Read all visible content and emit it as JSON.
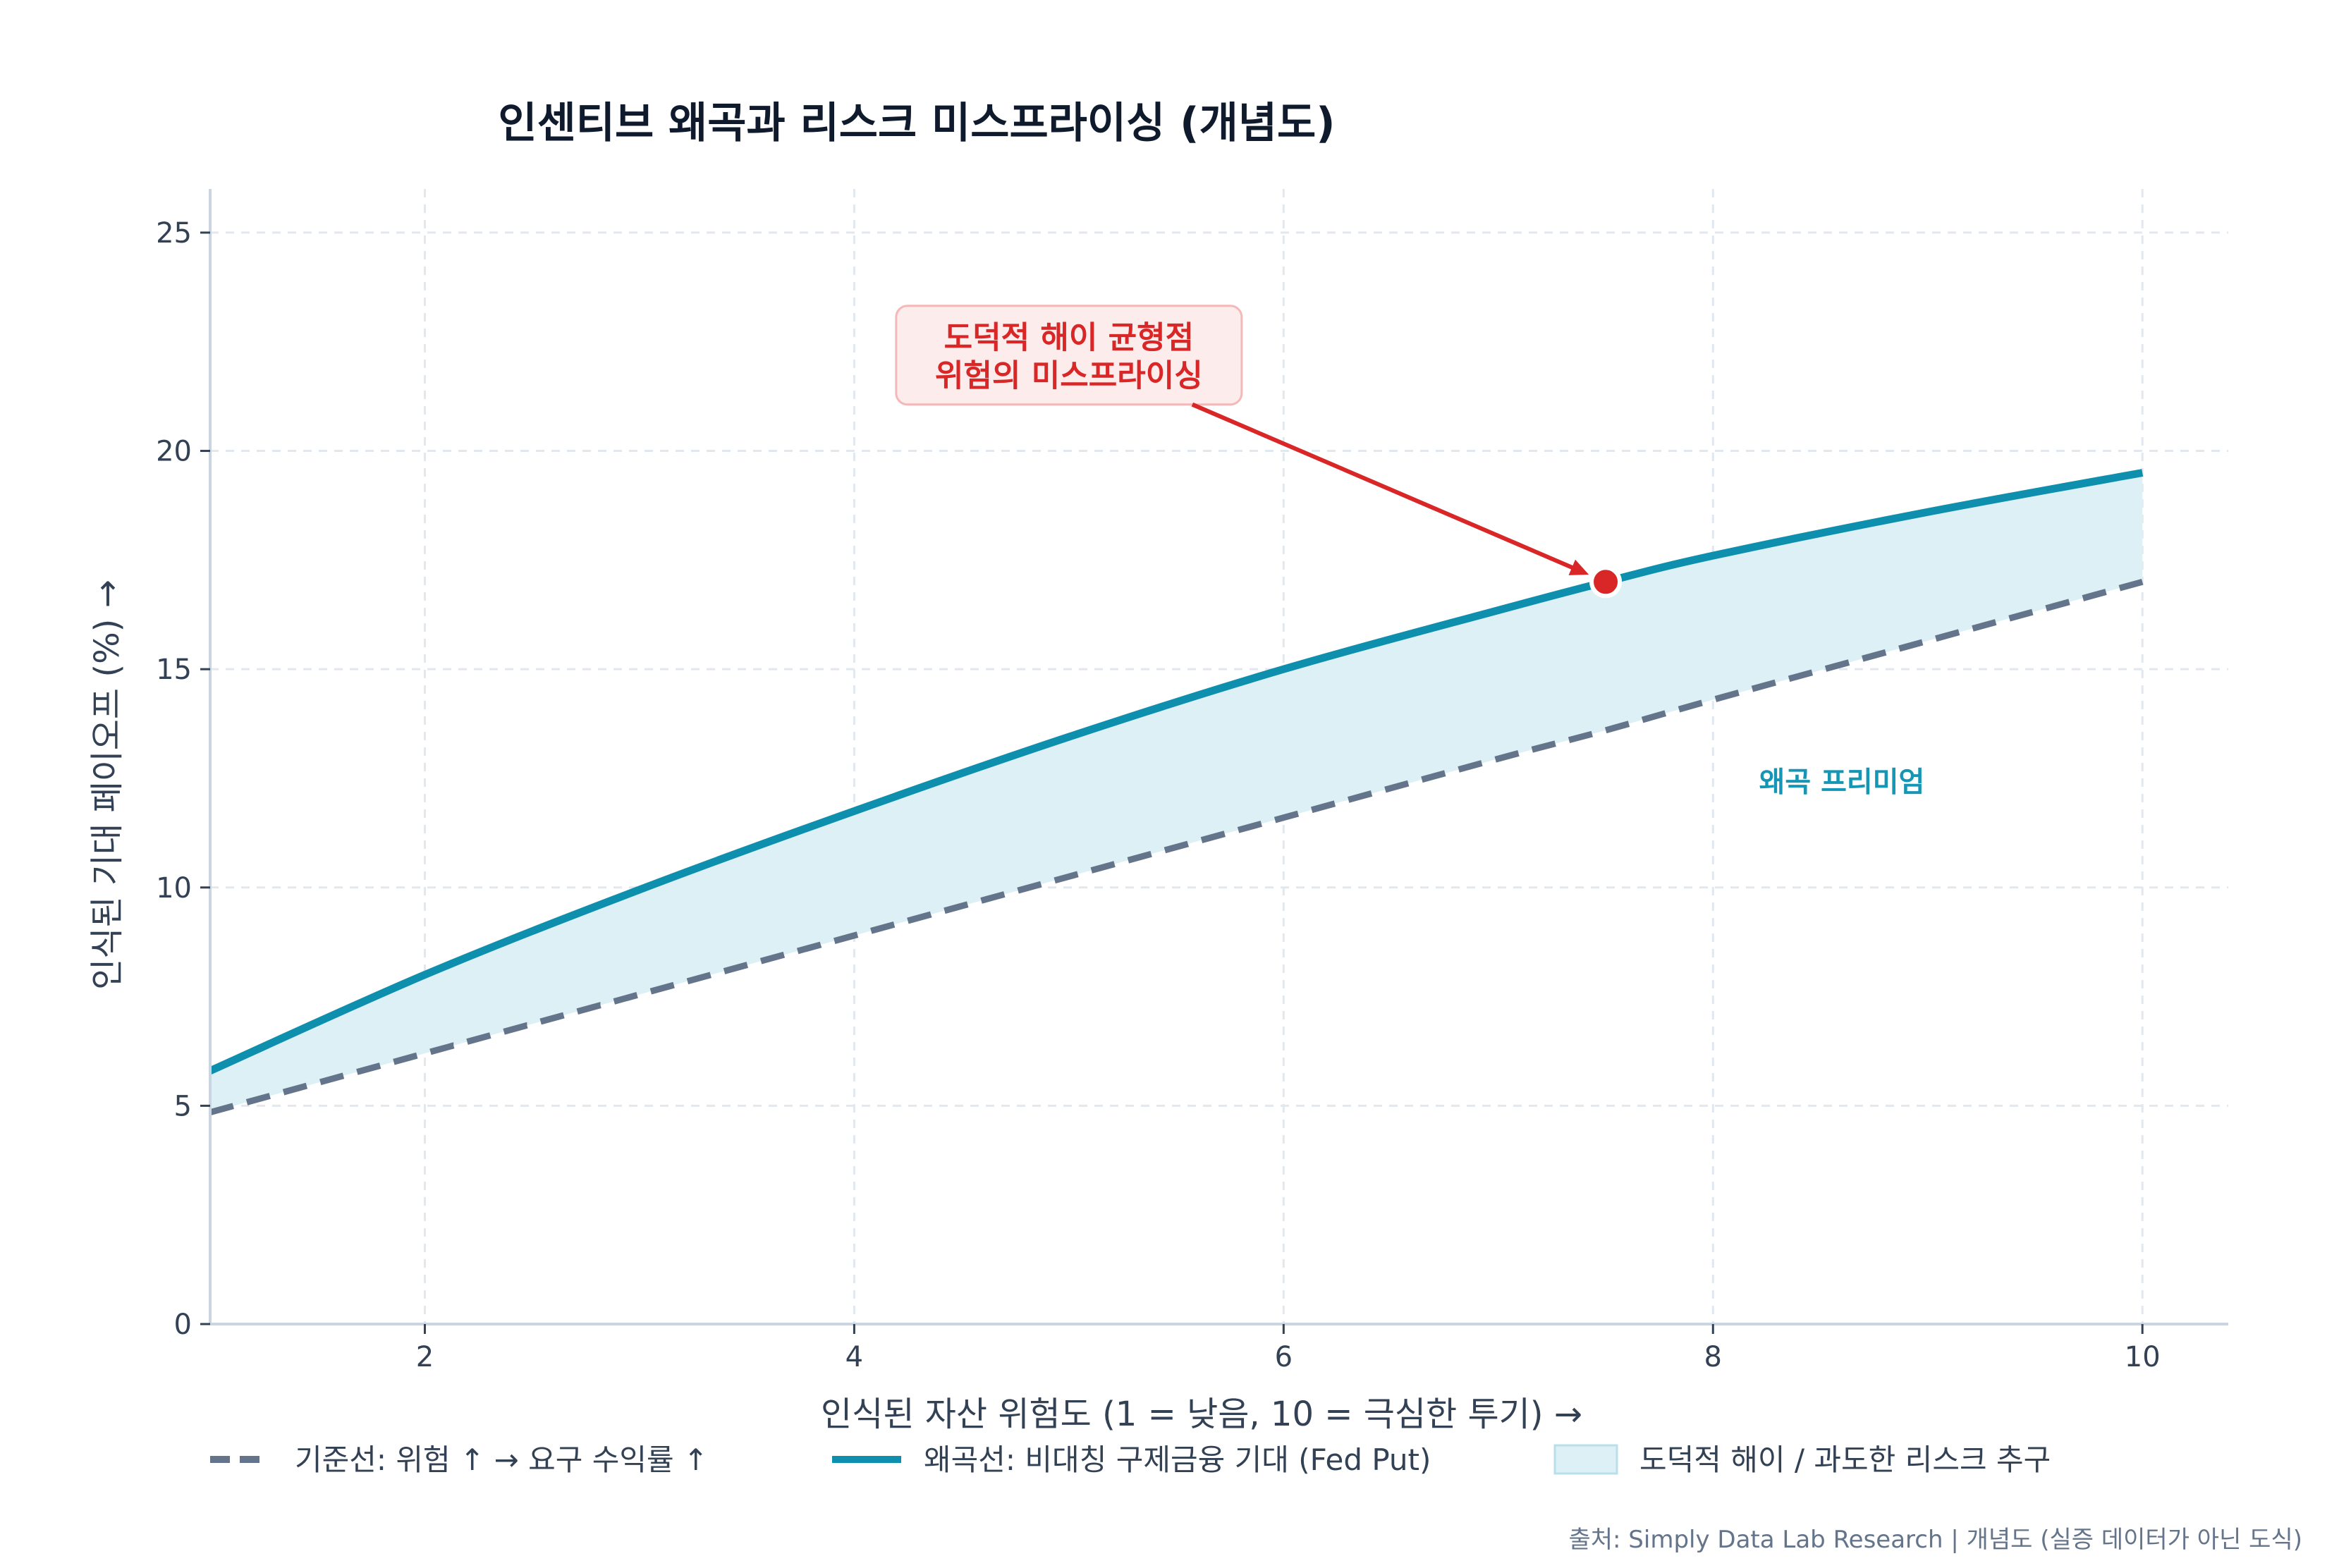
{
  "chart_data": {
    "type": "line",
    "title": "인센티브 왜곡과 리스크 미스프라이싱 (개념도)",
    "xlabel": "인식된 자산 위험도 (1 = 낮음, 10 = 극심한 투기) →",
    "ylabel": "인식된 기대 페이오프 (%) →",
    "xlim": [
      1,
      10.4
    ],
    "ylim": [
      0,
      26
    ],
    "x_ticks": [
      2,
      4,
      6,
      8,
      10
    ],
    "y_ticks": [
      0,
      5,
      10,
      15,
      20,
      25
    ],
    "grid": true,
    "legend_position": "bottom",
    "x": [
      1,
      2,
      3,
      4,
      5,
      6,
      7,
      7.5,
      8,
      9,
      10
    ],
    "series": [
      {
        "name": "기준선: 위험 ↑ → 요구 수익률 ↑",
        "style": "dashed",
        "color": "#64748b",
        "values": [
          4.85,
          6.2,
          7.55,
          8.9,
          10.25,
          11.6,
          12.95,
          13.6,
          14.3,
          15.65,
          17.0
        ]
      },
      {
        "name": "왜곡선: 비대칭 구제금융 기대 (Fed Put)",
        "style": "solid",
        "color": "#0e8fae",
        "values": [
          5.8,
          8.0,
          9.95,
          11.75,
          13.45,
          15.0,
          16.35,
          17.0,
          17.6,
          18.6,
          19.5
        ]
      }
    ],
    "fill_between": {
      "name": "도덕적 해이 / 과도한 리스크 추구",
      "color": "#dcf0f5",
      "label": "왜곡 프리미엄",
      "label_position": {
        "x": 8.6,
        "y": 12.2
      },
      "label_color": "#1596b4"
    },
    "annotation": {
      "text_line1": "도덕적 해이 균형점",
      "text_line2": "위험의 미스프라이싱",
      "point": {
        "x": 7.5,
        "y": 17.0
      },
      "text_position": {
        "x": 5.0,
        "y": 22.0
      },
      "color": "#d92626"
    },
    "source_note": "출처: Simply Data Lab Research | 개념도 (실증 데이터가 아닌 도식)"
  },
  "colors": {
    "title": "#0f1b2d",
    "axis_text": "#334155",
    "grid": "#e2e8f0",
    "spine": "#cbd5e1",
    "source": "#64748b"
  }
}
